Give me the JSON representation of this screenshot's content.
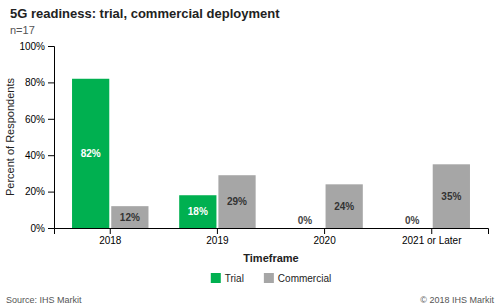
{
  "chart_data": {
    "type": "bar",
    "title": "5G readiness: trial, commercial deployment",
    "subtitle": "n=17",
    "categories": [
      "2018",
      "2019",
      "2020",
      "2021 or Later"
    ],
    "series": [
      {
        "name": "Trial",
        "color": "#00b050",
        "values": [
          82,
          18,
          0,
          0
        ],
        "value_labels": [
          "82%",
          "18%",
          "0%",
          "0%"
        ]
      },
      {
        "name": "Commercial",
        "color": "#a6a6a6",
        "values": [
          12,
          29,
          24,
          35
        ],
        "value_labels": [
          "12%",
          "29%",
          "24%",
          "35%"
        ]
      }
    ],
    "x_label": "Timeframe",
    "y_label": "Percent of Respondents",
    "ylim": [
      0,
      100
    ],
    "yticks": [
      {
        "value": 0,
        "label": "0%"
      },
      {
        "value": 20,
        "label": "20%"
      },
      {
        "value": 40,
        "label": "40%"
      },
      {
        "value": 60,
        "label": "60%"
      },
      {
        "value": 80,
        "label": "80%"
      },
      {
        "value": 100,
        "label": "100%"
      }
    ],
    "grid": false,
    "legend": "bottom",
    "data_labels": true,
    "annotations": [
      "Source: IHS Markit",
      "© 2018 IHS Markit"
    ]
  }
}
